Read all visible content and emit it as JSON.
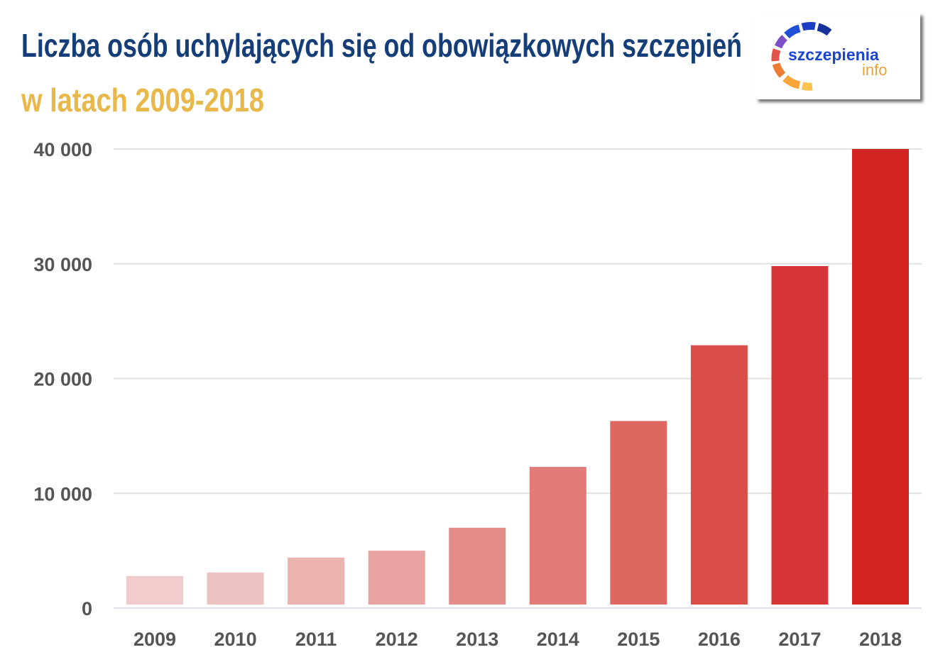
{
  "chart_data": {
    "type": "bar",
    "title": "Liczba osób uchylających się od obowiązkowych szczepień",
    "subtitle": "w latach 2009-2018",
    "xlabel": "",
    "ylabel": "",
    "categories": [
      "2009",
      "2010",
      "2011",
      "2012",
      "2013",
      "2014",
      "2015",
      "2016",
      "2017",
      "2018"
    ],
    "values": [
      2800,
      3100,
      4400,
      5000,
      7000,
      12300,
      16300,
      22900,
      29800,
      40000
    ],
    "bar_colors": [
      "#f2cccc",
      "#eec2c0",
      "#ebb2b0",
      "#e9a3a0",
      "#e58e89",
      "#e27b75",
      "#de6762",
      "#da4e49",
      "#d63636",
      "#d12420"
    ],
    "ylim": [
      0,
      40000
    ],
    "yticks": [
      0,
      10000,
      20000,
      30000,
      40000
    ],
    "ytick_labels": [
      "0",
      "10 000",
      "20 000",
      "30 000",
      "40 000"
    ],
    "grid": true,
    "legend": "none"
  },
  "logo": {
    "main": "szczepienia",
    "sub": "info"
  },
  "colors": {
    "title": "#153e78",
    "subtitle": "#e8b84a",
    "axis_text": "#555555",
    "grid": "#dde0e6"
  }
}
